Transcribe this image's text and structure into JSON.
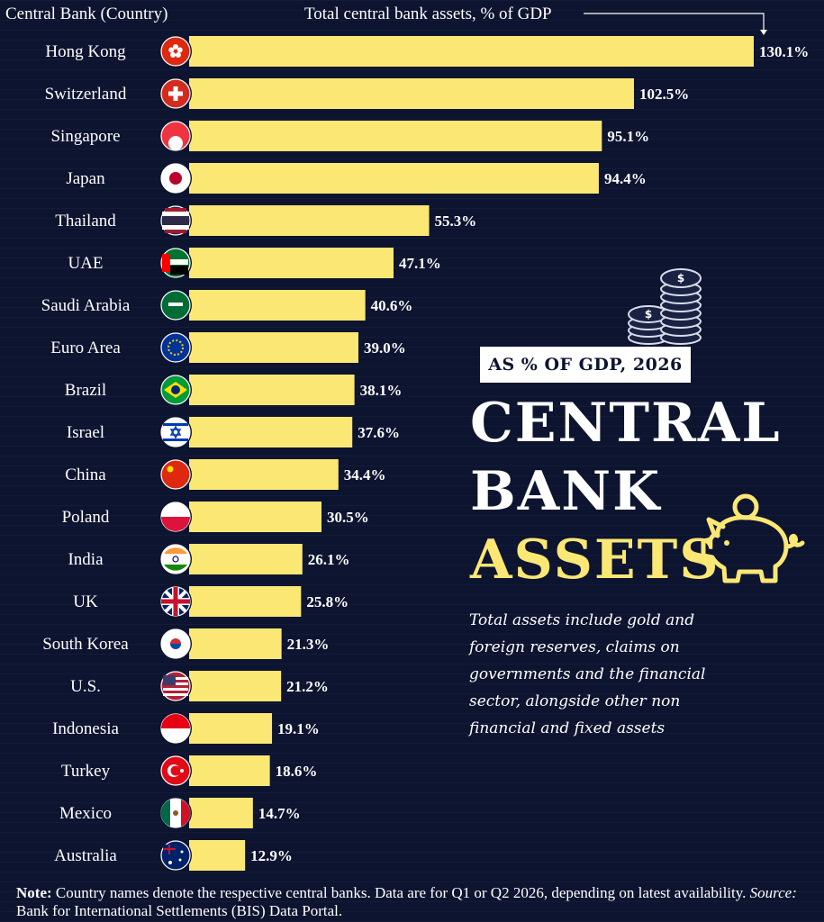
{
  "header": {
    "category_heading": "Central Bank (Country)",
    "value_heading": "Total central bank assets, % of GDP"
  },
  "side_panel": {
    "badge": "AS % OF GDP, 2026",
    "title_line1": "CENTRAL",
    "title_line2": "BANK",
    "title_line3": "ASSETS",
    "description": "Total assets include gold and foreign reserves, claims on governments and the financial sector, alongside other non financial and fixed assets"
  },
  "footer": {
    "note_label": "Note:",
    "note_text": " Country names denote the respective central banks. Data are for Q1 or Q2 2026, depending on latest availability. ",
    "source_label": "Source:",
    "source_text": " Bank for International Settlements (BIS) Data Portal."
  },
  "colors": {
    "background": "#0d1430",
    "bar": "#fbe774",
    "accent_title": "#fbe774"
  },
  "chart_data": {
    "type": "bar",
    "orientation": "horizontal",
    "title": "Total central bank assets, % of GDP",
    "xlabel": "Total central bank assets, % of GDP",
    "ylabel": "Central Bank (Country)",
    "unit": "%",
    "xlim": [
      0,
      130.1
    ],
    "grid": false,
    "categories": [
      "Hong Kong",
      "Switzerland",
      "Singapore",
      "Japan",
      "Thailand",
      "UAE",
      "Saudi Arabia",
      "Euro Area",
      "Brazil",
      "Israel",
      "China",
      "Poland",
      "India",
      "UK",
      "South Korea",
      "U.S.",
      "Indonesia",
      "Turkey",
      "Mexico",
      "Australia"
    ],
    "values": [
      130.1,
      102.5,
      95.1,
      94.4,
      55.3,
      47.1,
      40.6,
      39.0,
      38.1,
      37.6,
      34.4,
      30.5,
      26.1,
      25.8,
      21.3,
      21.2,
      19.1,
      18.6,
      14.7,
      12.9
    ],
    "value_labels": [
      "130.1%",
      "102.5%",
      "95.1%",
      "94.4%",
      "55.3%",
      "47.1%",
      "40.6%",
      "39.0%",
      "38.1%",
      "37.6%",
      "34.4%",
      "30.5%",
      "26.1%",
      "25.8%",
      "21.3%",
      "21.2%",
      "19.1%",
      "18.6%",
      "14.7%",
      "12.9%"
    ],
    "flag_icons": [
      "hong-kong-flag-icon",
      "switzerland-flag-icon",
      "singapore-flag-icon",
      "japan-flag-icon",
      "thailand-flag-icon",
      "uae-flag-icon",
      "saudi-arabia-flag-icon",
      "euro-area-flag-icon",
      "brazil-flag-icon",
      "israel-flag-icon",
      "china-flag-icon",
      "poland-flag-icon",
      "india-flag-icon",
      "uk-flag-icon",
      "south-korea-flag-icon",
      "us-flag-icon",
      "indonesia-flag-icon",
      "turkey-flag-icon",
      "mexico-flag-icon",
      "australia-flag-icon"
    ]
  }
}
